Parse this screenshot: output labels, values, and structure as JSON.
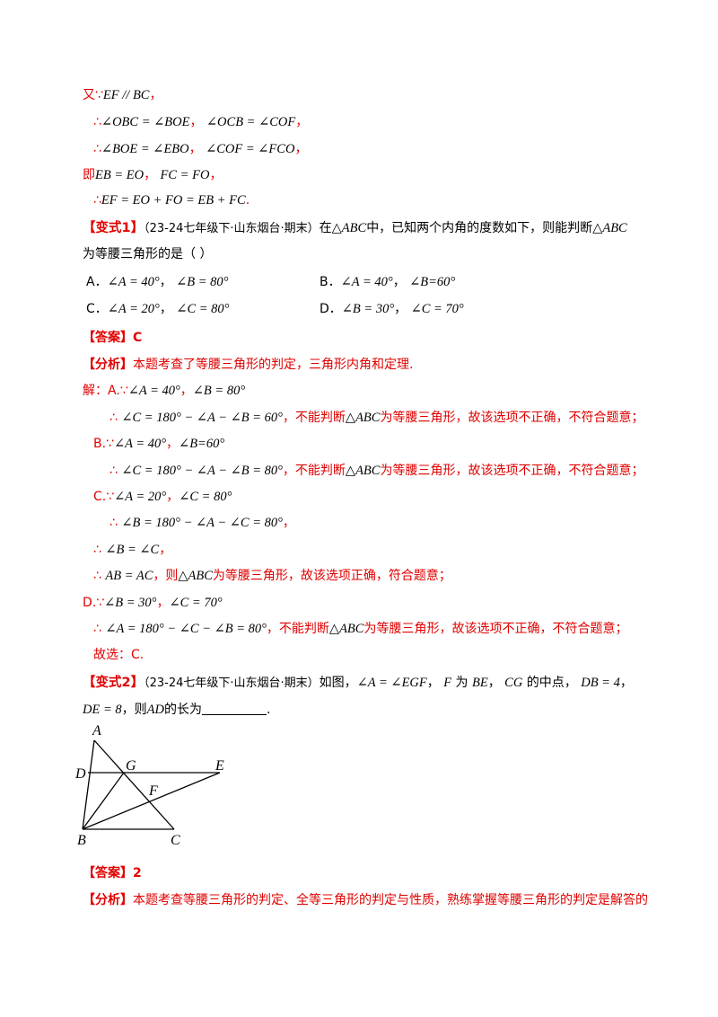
{
  "proof": [
    {
      "prefix": "又∵",
      "math": "EF // BC",
      "end": "，"
    },
    {
      "prefix": "∴",
      "math": "∠OBC = ∠BOE",
      "sep": "，",
      "math2": "∠OCB = ∠COF",
      "end": "，"
    },
    {
      "prefix": "∴",
      "math": "∠BOE = ∠EBO",
      "sep": "，",
      "math2": "∠COF = ∠FCO",
      "end": "，"
    },
    {
      "prefix": "即",
      "math": "EB = EO",
      "sep": "，",
      "math2": "FC = FO",
      "end": "，"
    },
    {
      "prefix": "∴",
      "math": "EF = EO + FO = EB + FC",
      "end": "."
    }
  ],
  "v1": {
    "bracket_label": "【变式1】",
    "source": "（23-24七年级下·山东烟台·期末）",
    "q_a": "在",
    "tri": "△ABC",
    "q_b": "中，已知两个内角的度数如下，则能判断",
    "q_c": "为等腰三角形的是（     ）",
    "options": [
      {
        "letter": "A．",
        "m1": "∠A = 40°",
        "sep": "，",
        "m2": "∠B = 80°"
      },
      {
        "letter": "B．",
        "m1": "∠A = 40°",
        "sep": "，",
        "m2": "∠B=60°"
      },
      {
        "letter": "C．",
        "m1": "∠A = 20°",
        "sep": "，",
        "m2": "∠C = 80°"
      },
      {
        "letter": "D．",
        "m1": "∠B = 30°",
        "sep": "，",
        "m2": "∠C = 70°"
      }
    ],
    "answer_label": "【答案】",
    "answer": "C",
    "analysis_label": "【分析】",
    "analysis": "本题考查了等腰三角形的判定，三角形内角和定理.",
    "sol": {
      "jie": "解：",
      "a_pre": "A.∵",
      "a_m1": "∠A = 40°",
      "a_m2": "∠B = 80°",
      "a_calc": "∠C = 180° − ∠A − ∠B = 60°",
      "not_judge": "，不能判断",
      "not_conc": "为等腰三角形，故该选项不正确，不符合题意；",
      "b_pre": "B.∵",
      "b_m1": "∠A = 40°",
      "b_m2": "∠B=60°",
      "b_calc": "∠C = 180° − ∠A − ∠B = 80°",
      "c_pre": "C.∵",
      "c_m1": "∠A = 20°",
      "c_m2": "∠C = 80°",
      "c_calc": "∠B = 180° − ∠A − ∠C = 80°",
      "c_eq": "∠B = ∠C",
      "c_ab": "AB = AC",
      "c_then": "，则",
      "c_conc": "为等腰三角形，故该选项正确，符合题意；",
      "d_pre": "D.∵",
      "d_m1": "∠B = 30°",
      "d_m2": "∠C = 70°",
      "d_calc": "∠A = 180° − ∠C − ∠B = 80°",
      "d_judge": "，不能判断",
      "final": "故选：C."
    }
  },
  "v2": {
    "bracket_label": "【变式2】",
    "source": "（23-24七年级下·山东烟台·期末）",
    "q_a": "如图，",
    "m1": "∠A = ∠EGF",
    "q_b": "，",
    "m2": "F",
    "q_c": "为",
    "m3": "BE",
    "q_d": "，",
    "m4": "CG",
    "q_e": "的中点，",
    "m5": "DB = 4",
    "q_f": "，",
    "m6": "DE = 8",
    "q_g": "，则",
    "m7": "AD",
    "q_h": "的长为",
    "q_end": ".",
    "figure_labels": {
      "A": "A",
      "B": "B",
      "C": "C",
      "D": "D",
      "E": "E",
      "F": "F",
      "G": "G"
    },
    "answer_label": "【答案】",
    "answer": "2",
    "analysis_label": "【分析】",
    "analysis": "本题考查等腰三角形的判定、全等三角形的判定与性质，熟练掌握等腰三角形的判定是解答的"
  }
}
